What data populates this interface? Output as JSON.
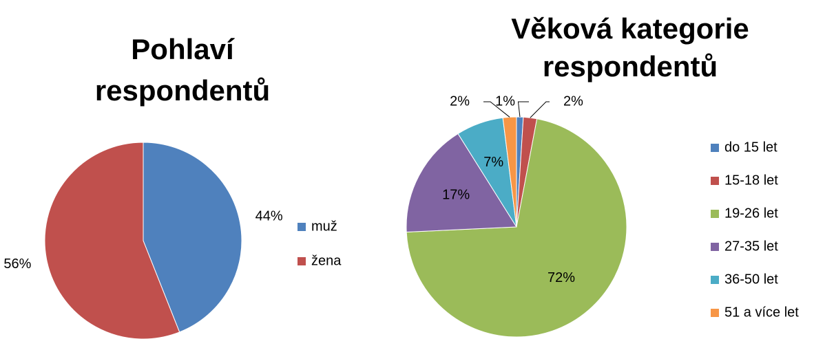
{
  "chart_data": [
    {
      "type": "pie",
      "title": [
        "Pohlaví",
        "respondentů"
      ],
      "categories": [
        "muž",
        "žena"
      ],
      "values": [
        44,
        56
      ],
      "value_labels": [
        "44%",
        "56%"
      ],
      "colors": [
        "#4f81bd",
        "#c0504d"
      ]
    },
    {
      "type": "pie",
      "title": [
        "Věková kategorie",
        "respondentů"
      ],
      "categories": [
        "do 15 let",
        "15-18 let",
        "19-26 let",
        "27-35 let",
        "36-50 let",
        "51 a více let"
      ],
      "values": [
        1,
        2,
        72,
        17,
        7,
        2
      ],
      "value_labels": [
        "1%",
        "2%",
        "72%",
        "17%",
        "7%",
        "2%"
      ],
      "colors": [
        "#4f81bd",
        "#c0504d",
        "#9bbb59",
        "#8064a2",
        "#4bacc6",
        "#f79646"
      ]
    }
  ]
}
